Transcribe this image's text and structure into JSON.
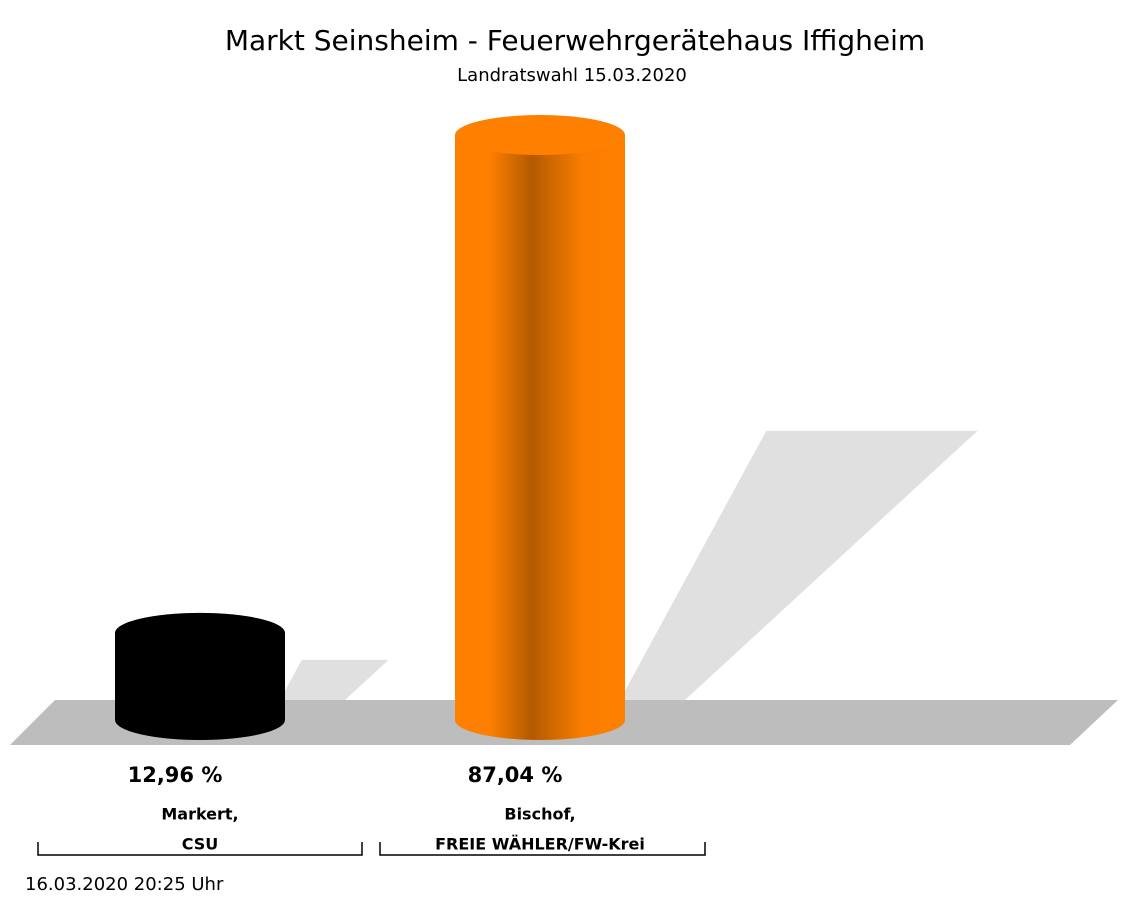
{
  "chart_data": {
    "type": "cylinder-bar",
    "title": "Markt Seinsheim - Feuerwehrgerätehaus Iffigheim",
    "subtitle": "Landratswahl 15.03.2020",
    "categories": [
      [
        "Markert,",
        "CSU"
      ],
      [
        "Bischof,",
        "FREIE WÄHLER/FW-Krei"
      ]
    ],
    "values": [
      12.96,
      87.04
    ],
    "value_labels": [
      "12,96 %",
      "87,04 %"
    ],
    "colors": [
      "#000000",
      "#ff8000"
    ],
    "footer": "16.03.2020 20:25 Uhr"
  }
}
